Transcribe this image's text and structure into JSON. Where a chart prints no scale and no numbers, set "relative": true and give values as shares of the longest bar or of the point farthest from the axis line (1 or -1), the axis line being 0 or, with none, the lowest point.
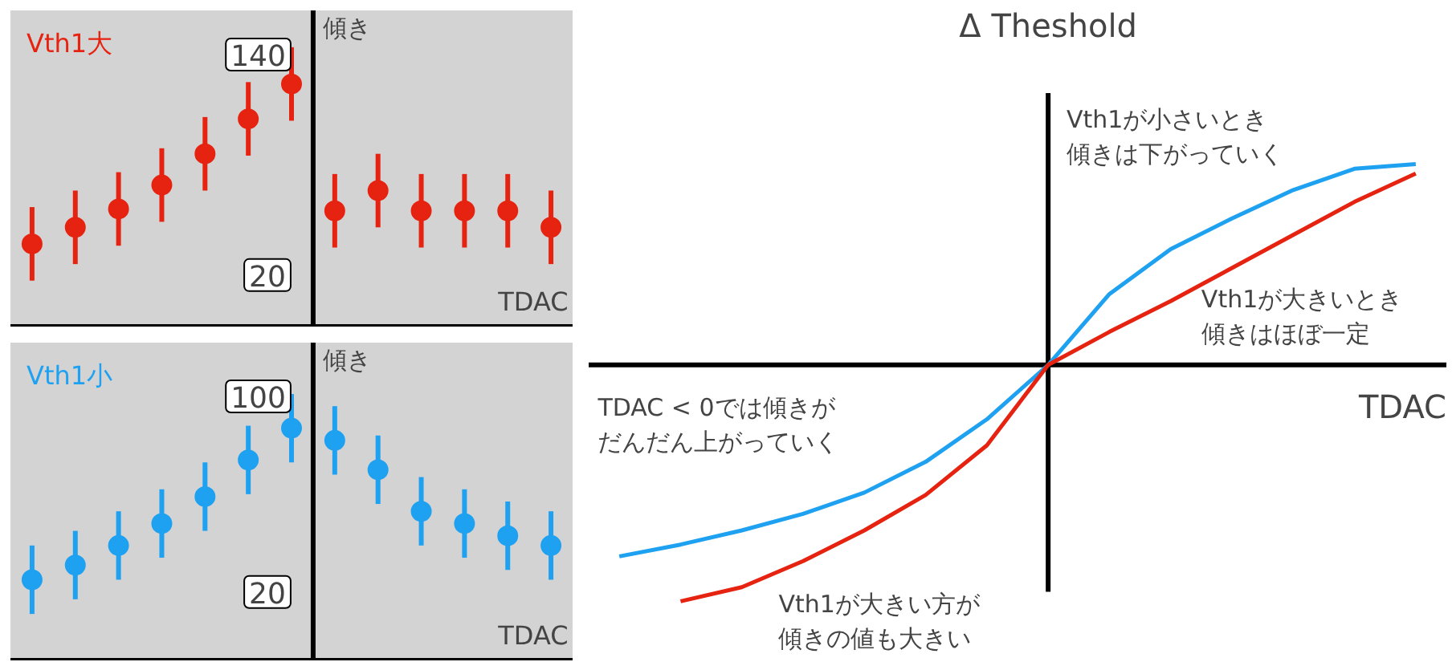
{
  "chart_data": [
    {
      "type": "scatter",
      "title": "Vth1大",
      "xlabel": "TDAC",
      "ylabel": "傾き",
      "categories": [
        null,
        null,
        null,
        null,
        null,
        null,
        null,
        null,
        null,
        null,
        null,
        null,
        null
      ],
      "tick_labels": "y",
      "marker": "circle",
      "grid": false,
      "ylim": [
        -8,
        164
      ],
      "yticks": [
        140,
        20
      ],
      "series": [
        {
          "color": "#e62310",
          "values": [
            37,
            46,
            56,
            69,
            86,
            105,
            124,
            55,
            66,
            55,
            55,
            55,
            46
          ],
          "errors": [
            20,
            20,
            20,
            20,
            20,
            20,
            20,
            20,
            20,
            20,
            20,
            20,
            20
          ]
        }
      ]
    },
    {
      "type": "scatter",
      "title": "Vth1小",
      "xlabel": "TDAC",
      "ylabel": "傾き",
      "categories": [
        null,
        null,
        null,
        null,
        null,
        null,
        null,
        null,
        null,
        null,
        null,
        null,
        null
      ],
      "tick_labels": "y",
      "marker": "circle",
      "grid": false,
      "ylim": [
        -8,
        122
      ],
      "yticks": [
        100,
        20
      ],
      "series": [
        {
          "color": "#1ea1f0",
          "values": [
            25,
            31,
            39,
            48,
            59,
            74,
            87,
            82,
            70,
            53,
            48,
            43,
            39
          ],
          "errors": [
            14,
            14,
            14,
            14,
            14,
            14,
            14,
            14,
            14,
            14,
            14,
            14,
            14
          ]
        }
      ]
    },
    {
      "type": "line",
      "relative": true,
      "xlabel": "TDAC",
      "ylabel": "Δ Theshold",
      "grid": false,
      "line_style": "solid",
      "categories": [
        null,
        null,
        null,
        null,
        null,
        null,
        null,
        null,
        null,
        null,
        null,
        null,
        null,
        null
      ],
      "series": [
        {
          "color": "#1ea1f0",
          "values": [
            -0.81,
            -0.76,
            -0.7,
            -0.63,
            -0.54,
            -0.41,
            -0.23,
            0,
            0.3,
            0.49,
            0.62,
            0.74,
            0.83,
            0.85
          ]
        },
        {
          "color": "#e62310",
          "values": [
            null,
            -1,
            -0.94,
            -0.83,
            -0.7,
            -0.55,
            -0.34,
            0,
            0.14,
            0.27,
            0.41,
            0.55,
            0.69,
            0.81
          ]
        }
      ],
      "annotations": [
        "Vth1が小さいとき傾きは下がっていく",
        "Vth1が大きいとき傾きはほぼ一定",
        "TDAC < 0では傾きがだんだん上がっていく",
        "Vth1が大きい方が傾きの値も大きい"
      ]
    }
  ]
}
